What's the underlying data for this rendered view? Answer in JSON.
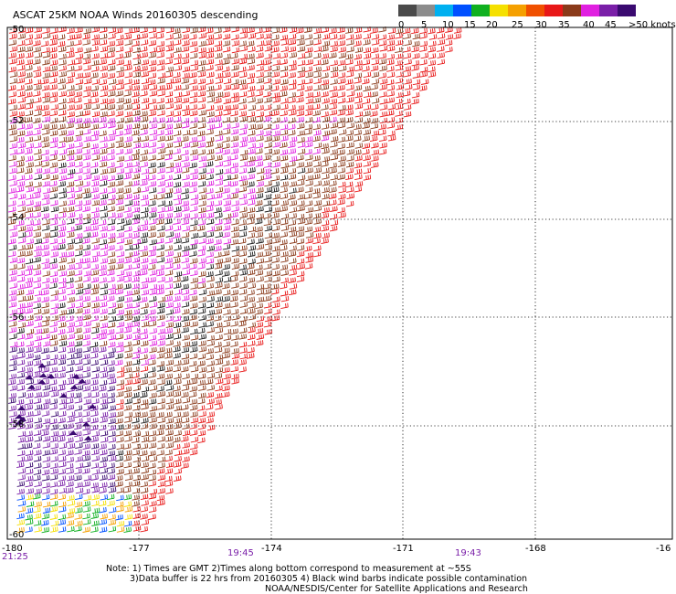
{
  "title": "ASCAT 25KM NOAA Winds 20160305 descending",
  "legend": {
    "labels": [
      "0",
      "5",
      "10",
      "15",
      "20",
      "25",
      "30",
      "35",
      "40",
      "45",
      ">50 knots"
    ],
    "colors": [
      "#4a4a4a",
      "#8c8c8c",
      "#00b0f0",
      "#0050ff",
      "#10b020",
      "#f5e000",
      "#f5a000",
      "#f05000",
      "#e81818",
      "#8a3a1a",
      "#e020e0",
      "#7a1fa8",
      "#3a0a70"
    ]
  },
  "axes": {
    "lat_labels": [
      "-50",
      "-52",
      "-54",
      "-56",
      "-58",
      "-60"
    ],
    "lon_labels": [
      "-180",
      "-177",
      "-174",
      "-171",
      "-168",
      "-16"
    ]
  },
  "times": {
    "left": "21:25",
    "middle": "19:45",
    "right": "19:43"
  },
  "notes": {
    "line1": "Note: 1) Times are GMT 2)Times along bottom correspond to measurement at ~55S",
    "line2": "3)Data buffer is 22 hrs from 20160305 4) Black wind barbs indicate possible contamination",
    "line3": "NOAA/NESDIS/Center for Satellite Applications and Research"
  }
}
